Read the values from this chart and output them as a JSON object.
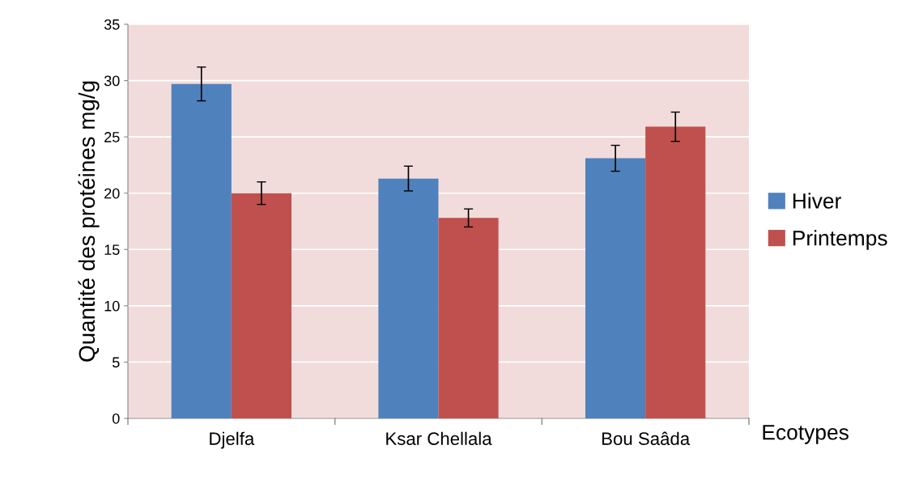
{
  "chart_data": {
    "type": "bar",
    "ylabel": "Quantité des protéines mg/g",
    "xlabel": "Ecotypes",
    "categories": [
      "Djelfa",
      "Ksar Chellala",
      "Bou Saâda"
    ],
    "series": [
      {
        "name": "Hiver",
        "color": "#4f81bd",
        "values": [
          29.7,
          21.3,
          23.1
        ],
        "errors": [
          1.5,
          1.1,
          1.15
        ]
      },
      {
        "name": "Printemps",
        "color": "#c0504d",
        "values": [
          20.0,
          17.8,
          25.9
        ],
        "errors": [
          1.0,
          0.8,
          1.3
        ]
      }
    ],
    "ylim": [
      0,
      35
    ],
    "yticks": [
      0,
      5,
      10,
      15,
      20,
      25,
      30,
      35
    ],
    "grid": "y",
    "legend": "right"
  }
}
